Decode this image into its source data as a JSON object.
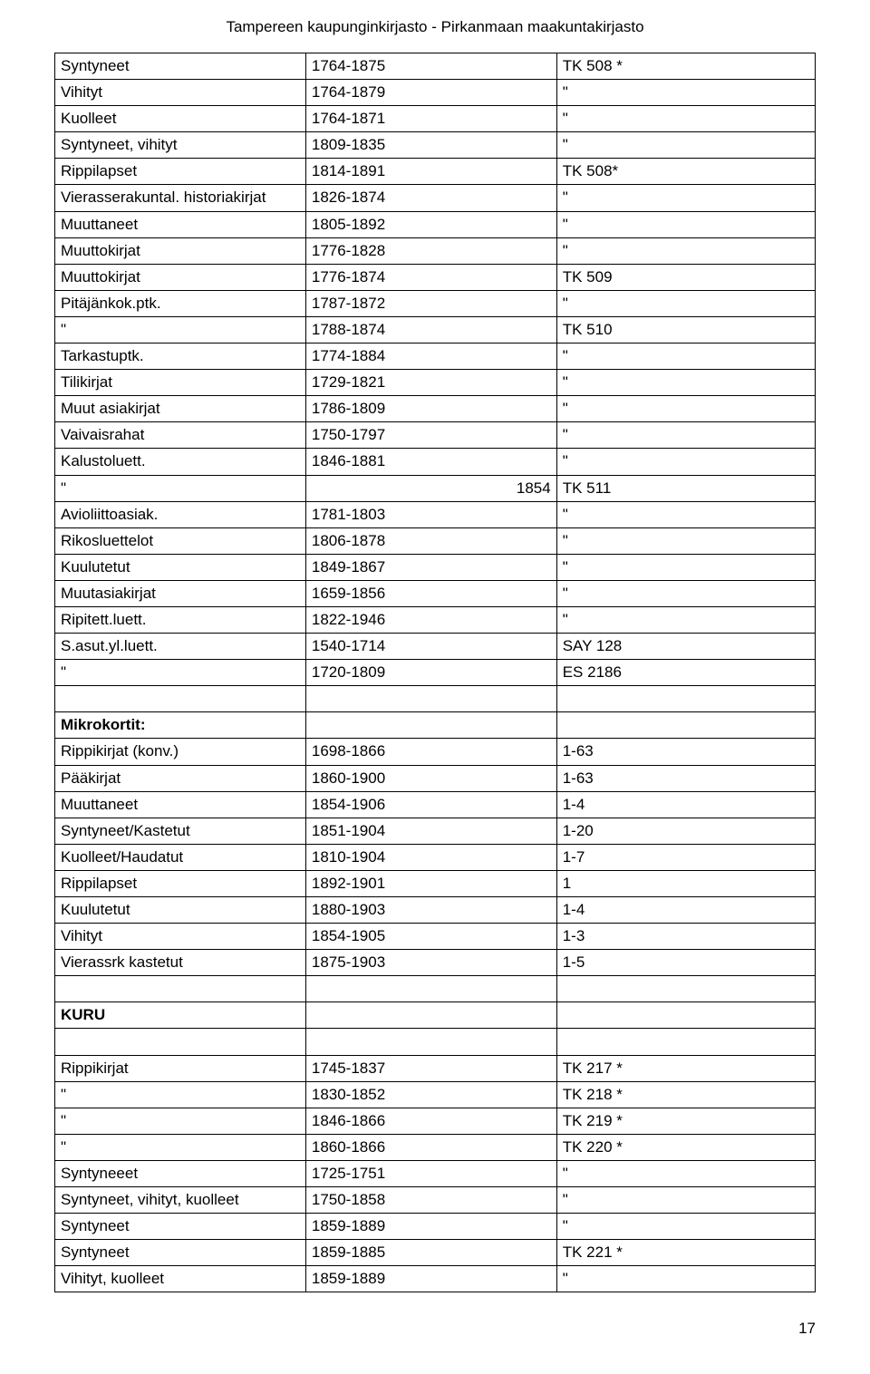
{
  "header": "Tampereen kaupunginkirjasto  - Pirkanmaan maakuntakirjasto",
  "page_number": "17",
  "section_mikrokortit": "Mikrokortit:",
  "section_kuru": "KURU",
  "rows1": [
    [
      "Syntyneet",
      "1764-1875",
      "TK 508 *"
    ],
    [
      "Vihityt",
      "1764-1879",
      "\""
    ],
    [
      "Kuolleet",
      "1764-1871",
      "\""
    ],
    [
      "Syntyneet, vihityt",
      "1809-1835",
      "\""
    ],
    [
      "Rippilapset",
      "1814-1891",
      "TK 508*"
    ],
    [
      "Vierasserakuntal. historiakirjat",
      "1826-1874",
      "\""
    ],
    [
      "Muuttaneet",
      "1805-1892",
      "\""
    ],
    [
      "Muuttokirjat",
      "1776-1828",
      "\""
    ],
    [
      "Muuttokirjat",
      "1776-1874",
      "TK 509"
    ],
    [
      "Pitäjänkok.ptk.",
      "1787-1872",
      "\""
    ],
    [
      "\"",
      "1788-1874",
      "TK 510"
    ],
    [
      "Tarkastuptk.",
      "1774-1884",
      "\""
    ],
    [
      "Tilikirjat",
      "1729-1821",
      "\""
    ],
    [
      "Muut asiakirjat",
      "1786-1809",
      "\""
    ],
    [
      "Vaivaisrahat",
      "1750-1797",
      "\""
    ],
    [
      "Kalustoluett.",
      "1846-1881",
      "\""
    ],
    [
      "\"",
      "1854",
      "TK 511"
    ],
    [
      "Avioliittoasiak.",
      "1781-1803",
      "\""
    ],
    [
      "Rikosluettelot",
      "1806-1878",
      "\""
    ],
    [
      "Kuulutetut",
      "1849-1867",
      "\""
    ],
    [
      "Muutasiakirjat",
      "1659-1856",
      "\""
    ],
    [
      "Ripitett.luett.",
      "1822-1946",
      "\""
    ],
    [
      "S.asut.yl.luett.",
      "1540-1714",
      "SAY 128"
    ],
    [
      "\"",
      "1720-1809",
      "ES 2186"
    ]
  ],
  "rows2": [
    [
      "Rippikirjat (konv.)",
      "1698-1866",
      "1-63"
    ],
    [
      "Pääkirjat",
      "1860-1900",
      "1-63"
    ],
    [
      "Muuttaneet",
      "1854-1906",
      "1-4"
    ],
    [
      "Syntyneet/Kastetut",
      "1851-1904",
      "1-20"
    ],
    [
      "Kuolleet/Haudatut",
      "1810-1904",
      "1-7"
    ],
    [
      "Rippilapset",
      "1892-1901",
      "1"
    ],
    [
      "Kuulutetut",
      "1880-1903",
      "1-4"
    ],
    [
      "Vihityt",
      "1854-1905",
      "1-3"
    ],
    [
      "Vierassrk kastetut",
      "1875-1903",
      "1-5"
    ]
  ],
  "rows3": [
    [
      "Rippikirjat",
      "1745-1837",
      "TK 217 *"
    ],
    [
      "\"",
      "1830-1852",
      "TK 218 *"
    ],
    [
      "\"",
      "1846-1866",
      "TK 219 *"
    ],
    [
      "\"",
      "1860-1866",
      "TK 220 *"
    ],
    [
      "Syntyneeet",
      "1725-1751",
      "\""
    ],
    [
      "Syntyneet, vihityt, kuolleet",
      "1750-1858",
      "\""
    ],
    [
      "Syntyneet",
      "1859-1889",
      "\""
    ],
    [
      "Syntyneet",
      "1859-1885",
      "TK 221 *"
    ],
    [
      "Vihityt, kuolleet",
      "1859-1889",
      "\""
    ]
  ],
  "row2_special_col2": "1854"
}
